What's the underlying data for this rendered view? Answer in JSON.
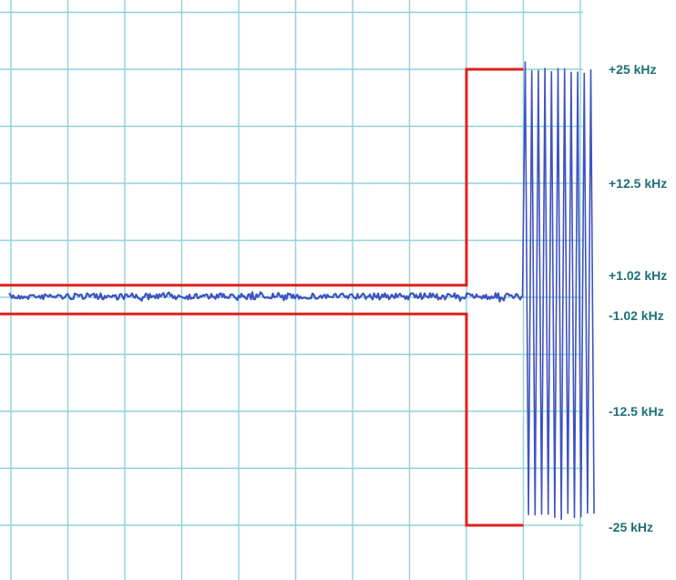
{
  "colors": {
    "grid": "#8fd3d8",
    "mask": "#e0201c",
    "trace": "#3f53c0",
    "label": "#1f6f78",
    "background": "#ffffff"
  },
  "chart_data": {
    "type": "line",
    "title": "",
    "xlabel": "",
    "ylabel": "",
    "grid": true,
    "x_divisions": 10,
    "ylim": [
      -30,
      30
    ],
    "y_unit": "kHz",
    "y_tick_labels": [
      {
        "value": 25,
        "label": "+25 kHz"
      },
      {
        "value": 12.5,
        "label": "+12.5 kHz"
      },
      {
        "value": 1.02,
        "label": "+1.02 kHz"
      },
      {
        "value": -1.02,
        "label": "-1.02 kHz"
      },
      {
        "value": -12.5,
        "label": "-12.5 kHz"
      },
      {
        "value": -25,
        "label": "-25 kHz"
      }
    ],
    "mask": {
      "inner_limit": [
        -1.02,
        1.02
      ],
      "outer_limit": [
        -25,
        25
      ],
      "step_at_division": 8
    },
    "trace": {
      "settled_deviation": 0,
      "settled_until_division": 9,
      "deviation_after": [
        -24,
        25
      ],
      "color": "#3f53c0"
    }
  }
}
